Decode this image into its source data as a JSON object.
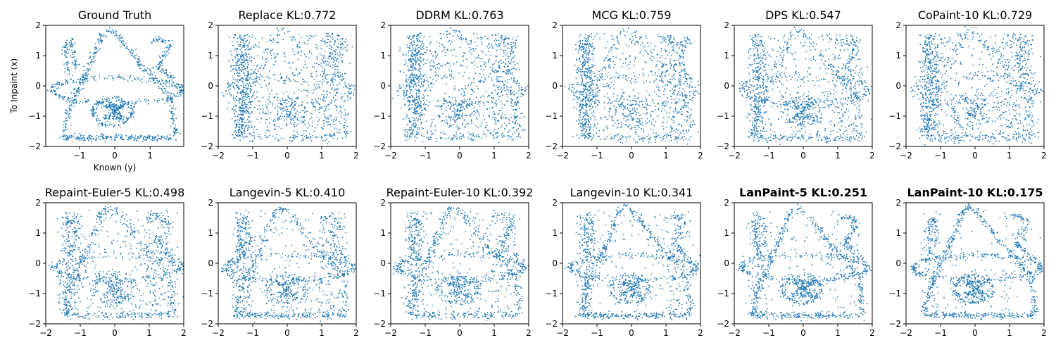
{
  "figure": {
    "description_color": "#1f77b4"
  },
  "chart_data": [
    {
      "type": "scatter",
      "title": "Ground Truth",
      "kl": null,
      "bold": false,
      "xlabel": "Known (y)",
      "ylabel": "To Inpaint (x)",
      "xlim": [
        -1.95,
        1.95
      ],
      "ylim": [
        -2,
        2
      ],
      "xticks": [
        -1,
        0,
        1
      ],
      "yticks": [
        -2,
        -1,
        0,
        1,
        2
      ],
      "noise": 0.05,
      "uniform_fraction": 0.0
    },
    {
      "type": "scatter",
      "title": "Replace  KL:0.772",
      "kl": 0.772,
      "bold": false,
      "xlabel": "",
      "ylabel": "",
      "xlim": [
        -2,
        2
      ],
      "ylim": [
        -2,
        2
      ],
      "xticks": [
        -2,
        -1,
        0,
        1,
        2
      ],
      "yticks": [
        -2,
        -1,
        0,
        1,
        2
      ],
      "noise": 0.08,
      "uniform_fraction": 0.62
    },
    {
      "type": "scatter",
      "title": "DDRM  KL:0.763",
      "kl": 0.763,
      "bold": false,
      "xlabel": "",
      "ylabel": "",
      "xlim": [
        -2,
        2
      ],
      "ylim": [
        -2,
        2
      ],
      "xticks": [
        -2,
        -1,
        0,
        1,
        2
      ],
      "yticks": [
        -2,
        -1,
        0,
        1,
        2
      ],
      "noise": 0.08,
      "uniform_fraction": 0.6
    },
    {
      "type": "scatter",
      "title": "MCG  KL:0.759",
      "kl": 0.759,
      "bold": false,
      "xlabel": "",
      "ylabel": "",
      "xlim": [
        -2,
        2
      ],
      "ylim": [
        -2,
        2
      ],
      "xticks": [
        -2,
        -1,
        0,
        1,
        2
      ],
      "yticks": [
        -2,
        -1,
        0,
        1,
        2
      ],
      "noise": 0.08,
      "uniform_fraction": 0.6
    },
    {
      "type": "scatter",
      "title": "DPS  KL:0.547",
      "kl": 0.547,
      "bold": false,
      "xlabel": "",
      "ylabel": "",
      "xlim": [
        -2,
        2
      ],
      "ylim": [
        -2,
        2
      ],
      "xticks": [
        -2,
        -1,
        0,
        1,
        2
      ],
      "yticks": [
        -2,
        -1,
        0,
        1,
        2
      ],
      "noise": 0.07,
      "uniform_fraction": 0.42
    },
    {
      "type": "scatter",
      "title": "CoPaint-10  KL:0.729",
      "kl": 0.729,
      "bold": false,
      "xlabel": "",
      "ylabel": "",
      "xlim": [
        -2,
        2
      ],
      "ylim": [
        -2,
        2
      ],
      "xticks": [
        -2,
        -1,
        0,
        1,
        2
      ],
      "yticks": [
        -2,
        -1,
        0,
        1,
        2
      ],
      "noise": 0.08,
      "uniform_fraction": 0.58
    },
    {
      "type": "scatter",
      "title": "Repaint-Euler-5  KL:0.498",
      "kl": 0.498,
      "bold": false,
      "xlabel": "",
      "ylabel": "",
      "xlim": [
        -2,
        2
      ],
      "ylim": [
        -2,
        2
      ],
      "xticks": [
        -2,
        -1,
        0,
        1,
        2
      ],
      "yticks": [
        -2,
        -1,
        0,
        1,
        2
      ],
      "noise": 0.07,
      "uniform_fraction": 0.38
    },
    {
      "type": "scatter",
      "title": "Langevin-5  KL:0.410",
      "kl": 0.41,
      "bold": false,
      "xlabel": "",
      "ylabel": "",
      "xlim": [
        -2,
        2
      ],
      "ylim": [
        -2,
        2
      ],
      "xticks": [
        -2,
        -1,
        0,
        1,
        2
      ],
      "yticks": [
        -2,
        -1,
        0,
        1,
        2
      ],
      "noise": 0.065,
      "uniform_fraction": 0.3
    },
    {
      "type": "scatter",
      "title": "Repaint-Euler-10  KL:0.392",
      "kl": 0.392,
      "bold": false,
      "xlabel": "",
      "ylabel": "",
      "xlim": [
        -2,
        2
      ],
      "ylim": [
        -2,
        2
      ],
      "xticks": [
        -2,
        -1,
        0,
        1,
        2
      ],
      "yticks": [
        -2,
        -1,
        0,
        1,
        2
      ],
      "noise": 0.065,
      "uniform_fraction": 0.28
    },
    {
      "type": "scatter",
      "title": "Langevin-10  KL:0.341",
      "kl": 0.341,
      "bold": false,
      "xlabel": "",
      "ylabel": "",
      "xlim": [
        -2,
        2
      ],
      "ylim": [
        -2,
        2
      ],
      "xticks": [
        -2,
        -1,
        0,
        1,
        2
      ],
      "yticks": [
        -2,
        -1,
        0,
        1,
        2
      ],
      "noise": 0.06,
      "uniform_fraction": 0.24
    },
    {
      "type": "scatter",
      "title": "LanPaint-5  KL:0.251",
      "kl": 0.251,
      "bold": true,
      "xlabel": "",
      "ylabel": "",
      "xlim": [
        -2,
        2
      ],
      "ylim": [
        -2,
        2
      ],
      "xticks": [
        -2,
        -1,
        0,
        1,
        2
      ],
      "yticks": [
        -2,
        -1,
        0,
        1,
        2
      ],
      "noise": 0.055,
      "uniform_fraction": 0.16
    },
    {
      "type": "scatter",
      "title": "LanPaint-10  KL:0.175",
      "kl": 0.175,
      "bold": true,
      "xlabel": "",
      "ylabel": "",
      "xlim": [
        -2,
        2
      ],
      "ylim": [
        -2,
        2
      ],
      "xticks": [
        -2,
        -1,
        0,
        1,
        2
      ],
      "yticks": [
        -2,
        -1,
        0,
        1,
        2
      ],
      "noise": 0.05,
      "uniform_fraction": 0.1
    }
  ]
}
